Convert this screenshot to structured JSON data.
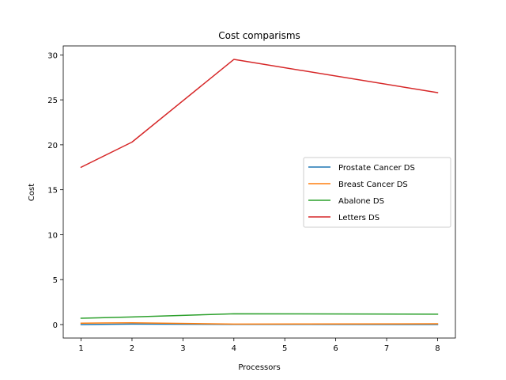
{
  "chart_data": {
    "type": "line",
    "title": "Cost comparisms",
    "xlabel": "Processors",
    "ylabel": "Cost",
    "x": [
      1,
      2,
      4,
      8
    ],
    "xlim": [
      0.65,
      8.35
    ],
    "ylim": [
      -1.5,
      31.0
    ],
    "xticks": [
      1,
      2,
      3,
      4,
      5,
      6,
      7,
      8
    ],
    "yticks": [
      0,
      5,
      10,
      15,
      20,
      25,
      30
    ],
    "grid": false,
    "legend_position": "center-right",
    "series": [
      {
        "name": "Prostate Cancer DS",
        "color": "#1f77b4",
        "values": [
          0.0,
          0.05,
          0.02,
          0.01
        ]
      },
      {
        "name": "Breast Cancer DS",
        "color": "#ff7f0e",
        "values": [
          0.15,
          0.2,
          0.05,
          0.08
        ]
      },
      {
        "name": "Abalone DS",
        "color": "#2ca02c",
        "values": [
          0.7,
          0.85,
          1.2,
          1.15
        ]
      },
      {
        "name": "Letters DS",
        "color": "#d62728",
        "values": [
          17.5,
          20.3,
          29.5,
          25.8
        ]
      }
    ]
  }
}
